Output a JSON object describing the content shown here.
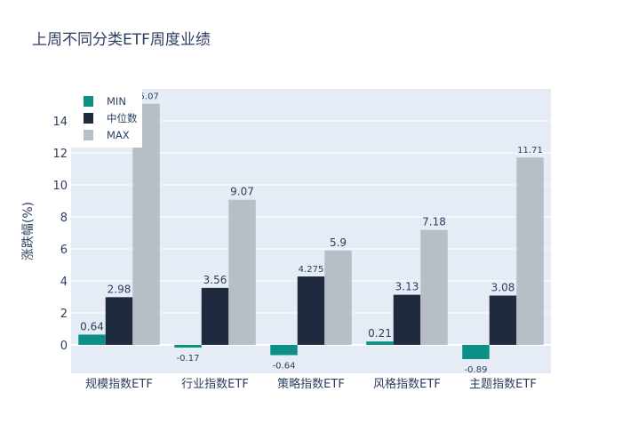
{
  "chart_data": {
    "type": "bar",
    "title": "上周不同分类ETF周度业绩",
    "xlabel": "",
    "ylabel": "涨跌幅(%)",
    "ylim": [
      -1.78,
      16
    ],
    "yticks": [
      0,
      2,
      4,
      6,
      8,
      10,
      12,
      14
    ],
    "categories": [
      "规模指数ETF",
      "行业指数ETF",
      "策略指数ETF",
      "风格指数ETF",
      "主题指数ETF"
    ],
    "series": [
      {
        "name": "MIN",
        "color": "#0d8f86",
        "values": [
          0.64,
          -0.17,
          -0.64,
          0.21,
          -0.89
        ],
        "labels": [
          "0.64",
          "-0.17",
          "-0.64",
          "0.21",
          "-0.89"
        ]
      },
      {
        "name": "中位数",
        "color": "#1f2a3e",
        "values": [
          2.98,
          3.56,
          4.275,
          3.13,
          3.08
        ],
        "labels": [
          "2.98",
          "3.56",
          "4.275",
          "3.13",
          "3.08"
        ]
      },
      {
        "name": "MAX",
        "color": "#b8bec6",
        "values": [
          15.07,
          9.07,
          5.9,
          7.18,
          11.71
        ],
        "labels": [
          "15.07",
          "9.07",
          "5.9",
          "7.18",
          "11.71"
        ]
      }
    ],
    "legend": "top-left",
    "grid": true
  }
}
